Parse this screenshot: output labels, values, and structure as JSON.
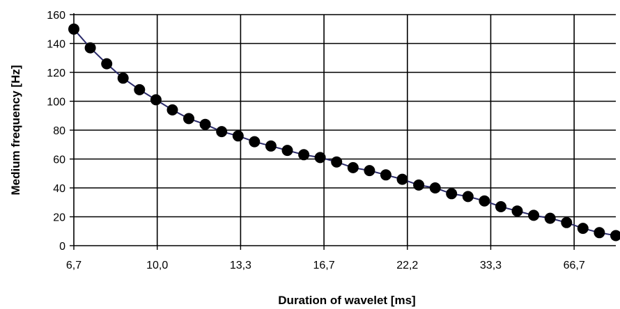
{
  "chart_data": {
    "type": "line",
    "title": "",
    "xlabel": "Duration of wavelet [ms]",
    "ylabel": "Medium frequency [Hz]",
    "x_tick_labels": [
      "6,7",
      "10,0",
      "13,3",
      "16,7",
      "22,2",
      "33,3",
      "66,7"
    ],
    "y_ticks": [
      "0",
      "20",
      "40",
      "60",
      "80",
      "100",
      "120",
      "140",
      "160"
    ],
    "ylim": [
      0,
      160
    ],
    "grid": true,
    "legend": "none",
    "marker": "filled-circle",
    "colors": {
      "line": "#2a2a6a",
      "marker": "#000000",
      "grid": "#000000"
    },
    "series": [
      {
        "values": [
          150,
          137,
          126,
          116,
          108,
          101,
          94,
          88,
          84,
          79,
          76,
          72,
          69,
          66,
          63,
          61,
          58,
          54,
          52,
          49,
          46,
          42,
          40,
          36,
          34,
          31,
          27,
          24,
          21,
          19,
          16,
          12,
          9,
          7
        ]
      }
    ]
  }
}
